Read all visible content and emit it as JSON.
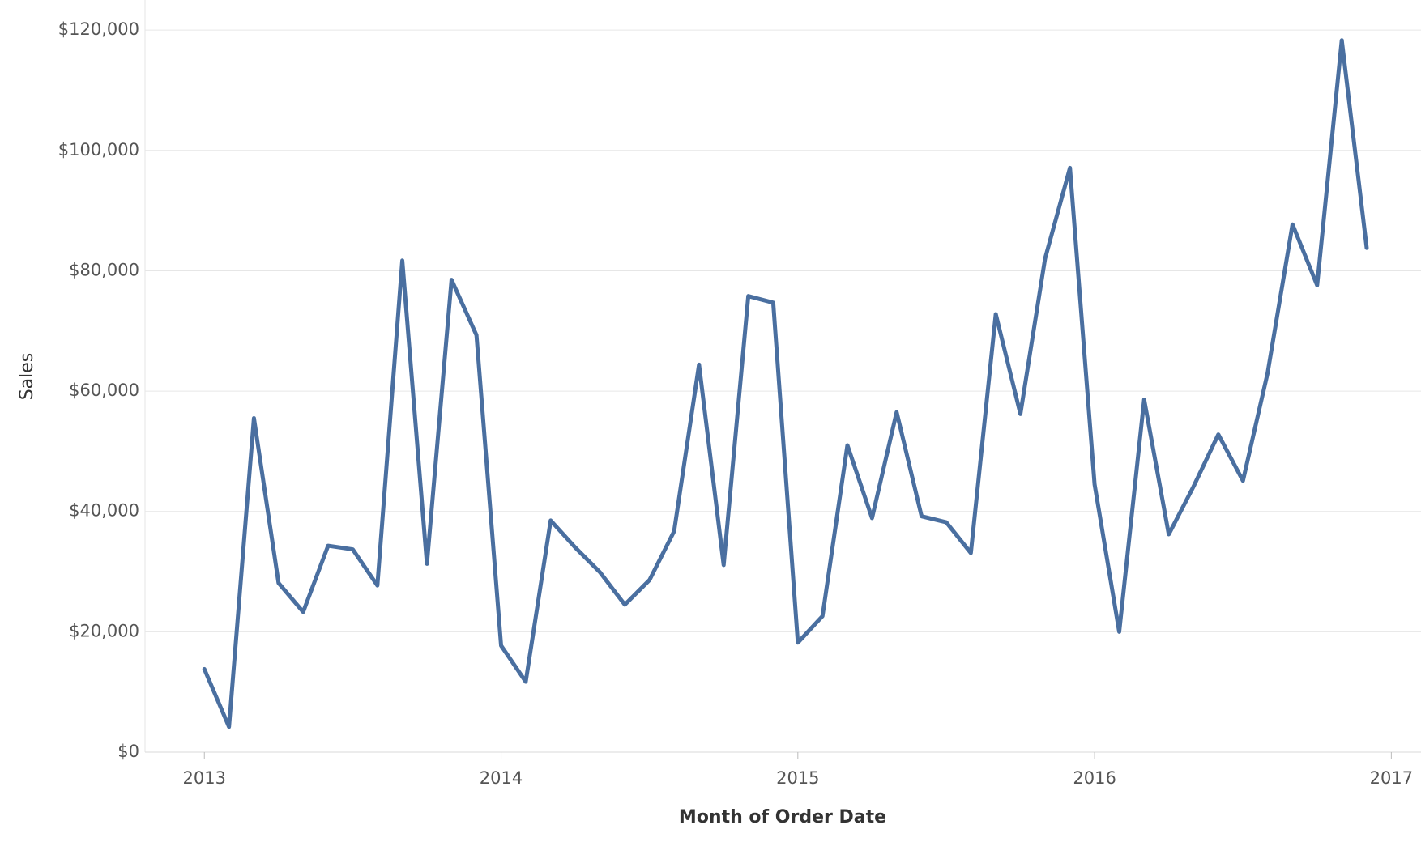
{
  "chart_data": {
    "type": "line",
    "x_label": "Month of Order Date",
    "y_label": "Sales",
    "color": "#4a6fa0",
    "grid": true,
    "x": [
      2013,
      2013.083,
      2013.167,
      2013.25,
      2013.333,
      2013.417,
      2013.5,
      2013.583,
      2013.667,
      2013.75,
      2013.833,
      2013.917,
      2014,
      2014.083,
      2014.167,
      2014.25,
      2014.333,
      2014.417,
      2014.5,
      2014.583,
      2014.667,
      2014.75,
      2014.833,
      2014.917,
      2015,
      2015.083,
      2015.167,
      2015.25,
      2015.333,
      2015.417,
      2015.5,
      2015.583,
      2015.667,
      2015.75,
      2015.833,
      2015.917,
      2016,
      2016.083,
      2016.167,
      2016.25,
      2016.333,
      2016.417,
      2016.5,
      2016.583,
      2016.667,
      2016.75,
      2016.833,
      2016.917
    ],
    "values": [
      13800,
      4200,
      55500,
      28100,
      23300,
      34300,
      33700,
      27700,
      81700,
      31300,
      78500,
      69300,
      17700,
      11700,
      38500,
      34000,
      29900,
      24500,
      28600,
      36700,
      64400,
      31100,
      75800,
      74700,
      18200,
      22600,
      51000,
      38900,
      56500,
      39200,
      38200,
      33100,
      72800,
      56200,
      82000,
      97100,
      44500,
      20000,
      58600,
      36200,
      44100,
      52800,
      45100,
      63000,
      87700,
      77600,
      118300,
      83800
    ],
    "xlim": [
      2012.8,
      2017.1
    ],
    "xticks": [
      2013,
      2014,
      2015,
      2016,
      2017
    ],
    "ylim": [
      0,
      125000
    ],
    "yticks": [
      {
        "value": 0,
        "label": "$0"
      },
      {
        "value": 20000,
        "label": "$20,000"
      },
      {
        "value": 40000,
        "label": "$40,000"
      },
      {
        "value": 60000,
        "label": "$60,000"
      },
      {
        "value": 80000,
        "label": "$80,000"
      },
      {
        "value": 100000,
        "label": "$100,000"
      },
      {
        "value": 120000,
        "label": "$120,000"
      }
    ]
  }
}
